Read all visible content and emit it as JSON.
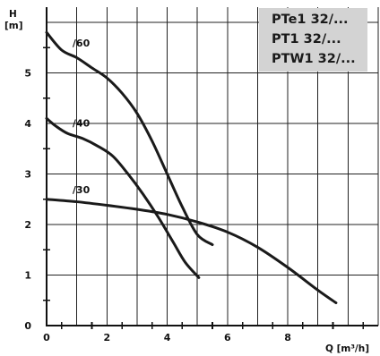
{
  "chart_data": {
    "type": "line",
    "title_lines": [
      "PTe1 32/...",
      "PT1 32/...",
      "PTW1 32/..."
    ],
    "ylabel_line1": "H",
    "ylabel_line2": "[m]",
    "xlabel": "Q [m³/h]",
    "xlim": [
      0,
      11
    ],
    "ylim": [
      0,
      6.3
    ],
    "x_ticks": [
      0,
      2,
      4,
      6,
      8
    ],
    "y_ticks": [
      0,
      1,
      2,
      3,
      4,
      5
    ],
    "grid": true,
    "series": [
      {
        "name": "/60",
        "points": [
          [
            0,
            5.8
          ],
          [
            0.5,
            5.45
          ],
          [
            1.0,
            5.3
          ],
          [
            1.5,
            5.1
          ],
          [
            2.0,
            4.9
          ],
          [
            2.5,
            4.6
          ],
          [
            3.0,
            4.2
          ],
          [
            3.5,
            3.65
          ],
          [
            4.0,
            3.0
          ],
          [
            4.5,
            2.35
          ],
          [
            5.0,
            1.8
          ],
          [
            5.5,
            1.6
          ]
        ]
      },
      {
        "name": "/40",
        "points": [
          [
            0,
            4.1
          ],
          [
            0.3,
            3.95
          ],
          [
            0.7,
            3.8
          ],
          [
            1.2,
            3.7
          ],
          [
            1.7,
            3.55
          ],
          [
            2.2,
            3.35
          ],
          [
            2.7,
            3.0
          ],
          [
            3.2,
            2.6
          ],
          [
            3.7,
            2.15
          ],
          [
            4.2,
            1.65
          ],
          [
            4.6,
            1.25
          ],
          [
            5.05,
            0.95
          ]
        ]
      },
      {
        "name": "/30",
        "points": [
          [
            0,
            2.5
          ],
          [
            1.0,
            2.45
          ],
          [
            2.0,
            2.38
          ],
          [
            3.0,
            2.3
          ],
          [
            4.0,
            2.2
          ],
          [
            5.0,
            2.05
          ],
          [
            6.0,
            1.85
          ],
          [
            7.0,
            1.55
          ],
          [
            8.0,
            1.15
          ],
          [
            9.0,
            0.7
          ],
          [
            9.6,
            0.45
          ]
        ]
      }
    ],
    "series_label_anchor_x": [
      0.8,
      0.8,
      0.8
    ]
  }
}
